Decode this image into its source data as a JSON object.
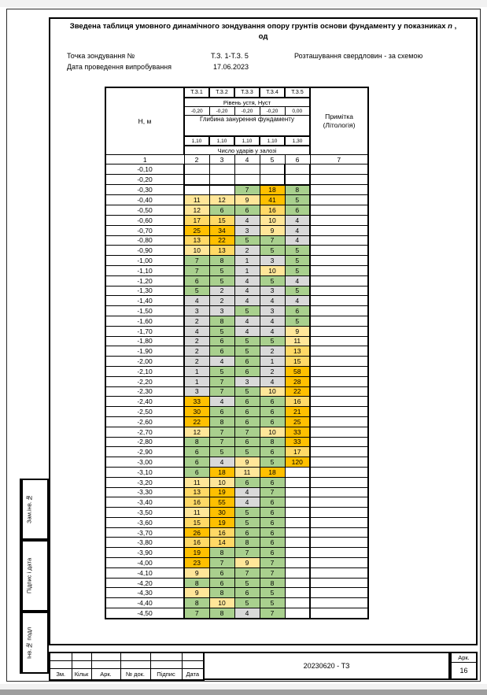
{
  "document": {
    "title": {
      "prefix": "Зведена таблиця умовного динамічного зондування опору грунтів основи фундаменту у показниках",
      "variable": "n",
      "suffix": ",",
      "line2": "од"
    },
    "meta": {
      "point_label": "Точка зондування №",
      "point_value": "Т.З. 1-Т.З. 5",
      "location_note": "Розташування свердловин - за схемою",
      "date_label": "Дата проведення випробування",
      "date_value": "17.06.2023"
    }
  },
  "sounding_table": {
    "depth_header": "Н, м",
    "points": [
      "Т.З.1",
      "Т.З.2",
      "Т.З.3",
      "Т.З.4",
      "Т.З.5"
    ],
    "level_label": "Рівень устя, Нуст",
    "levels": [
      "-0,20",
      "-0,20",
      "-0,20",
      "-0,20",
      "0,00"
    ],
    "foundation_label": "Глибина занурення фундаменту",
    "foundation_depths": [
      "1,10",
      "1,10",
      "1,10",
      "1,10",
      "1,30"
    ],
    "blows_label": "Число ударів у залозі",
    "note_line1": "Примітка",
    "note_line2": "(Літологія)",
    "column_numbers": [
      "1",
      "2",
      "3",
      "4",
      "5",
      "6",
      "7"
    ],
    "rows": [
      {
        "d": "-0,10",
        "v": [
          null,
          null,
          null,
          null,
          null
        ]
      },
      {
        "d": "-0,20",
        "v": [
          null,
          null,
          null,
          null,
          null
        ]
      },
      {
        "d": "-0,30",
        "v": [
          null,
          null,
          7,
          18,
          8
        ]
      },
      {
        "d": "-0,40",
        "v": [
          11,
          12,
          9,
          41,
          5
        ]
      },
      {
        "d": "-0,50",
        "v": [
          12,
          6,
          6,
          16,
          6
        ]
      },
      {
        "d": "-0,60",
        "v": [
          17,
          15,
          4,
          10,
          4
        ]
      },
      {
        "d": "-0,70",
        "v": [
          25,
          34,
          3,
          9,
          4
        ]
      },
      {
        "d": "-0,80",
        "v": [
          13,
          22,
          5,
          7,
          4
        ]
      },
      {
        "d": "-0,90",
        "v": [
          10,
          13,
          2,
          5,
          5
        ]
      },
      {
        "d": "-1,00",
        "v": [
          7,
          8,
          1,
          3,
          5
        ]
      },
      {
        "d": "-1,10",
        "v": [
          7,
          5,
          1,
          10,
          5
        ]
      },
      {
        "d": "-1,20",
        "v": [
          6,
          5,
          4,
          5,
          4
        ]
      },
      {
        "d": "-1,30",
        "v": [
          5,
          2,
          4,
          3,
          5
        ]
      },
      {
        "d": "-1,40",
        "v": [
          4,
          2,
          4,
          4,
          4
        ]
      },
      {
        "d": "-1,50",
        "v": [
          3,
          3,
          5,
          3,
          6
        ]
      },
      {
        "d": "-1,60",
        "v": [
          2,
          8,
          4,
          4,
          5
        ]
      },
      {
        "d": "-1,70",
        "v": [
          4,
          5,
          4,
          4,
          9
        ]
      },
      {
        "d": "-1,80",
        "v": [
          2,
          6,
          5,
          5,
          11
        ]
      },
      {
        "d": "-1,90",
        "v": [
          2,
          6,
          5,
          2,
          13
        ]
      },
      {
        "d": "-2,00",
        "v": [
          2,
          4,
          6,
          1,
          15
        ]
      },
      {
        "d": "-2,10",
        "v": [
          1,
          5,
          6,
          2,
          58
        ]
      },
      {
        "d": "-2,20",
        "v": [
          1,
          7,
          3,
          4,
          28
        ]
      },
      {
        "d": "-2,30",
        "v": [
          3,
          7,
          5,
          10,
          22
        ]
      },
      {
        "d": "-2,40",
        "v": [
          33,
          4,
          6,
          6,
          16
        ]
      },
      {
        "d": "-2,50",
        "v": [
          30,
          6,
          6,
          6,
          21
        ]
      },
      {
        "d": "-2,60",
        "v": [
          22,
          8,
          6,
          6,
          25
        ]
      },
      {
        "d": "-2,70",
        "v": [
          12,
          7,
          7,
          10,
          33
        ]
      },
      {
        "d": "-2,80",
        "v": [
          8,
          7,
          6,
          8,
          33
        ]
      },
      {
        "d": "-2,90",
        "v": [
          6,
          5,
          5,
          6,
          17
        ]
      },
      {
        "d": "-3,00",
        "v": [
          6,
          4,
          9,
          5,
          120
        ]
      },
      {
        "d": "-3,10",
        "v": [
          6,
          18,
          11,
          18,
          null
        ]
      },
      {
        "d": "-3,20",
        "v": [
          11,
          10,
          6,
          6,
          null
        ]
      },
      {
        "d": "-3,30",
        "v": [
          13,
          19,
          4,
          7,
          null
        ]
      },
      {
        "d": "-3,40",
        "v": [
          16,
          55,
          4,
          6,
          null
        ]
      },
      {
        "d": "-3,50",
        "v": [
          11,
          30,
          5,
          6,
          null
        ]
      },
      {
        "d": "-3,60",
        "v": [
          15,
          19,
          5,
          6,
          null
        ]
      },
      {
        "d": "-3,70",
        "v": [
          26,
          16,
          6,
          6,
          null
        ]
      },
      {
        "d": "-3,80",
        "v": [
          16,
          14,
          8,
          6,
          null
        ]
      },
      {
        "d": "-3,90",
        "v": [
          19,
          8,
          7,
          6,
          null
        ]
      },
      {
        "d": "-4,00",
        "v": [
          23,
          7,
          9,
          7,
          null
        ]
      },
      {
        "d": "-4,10",
        "v": [
          9,
          6,
          7,
          7,
          null
        ]
      },
      {
        "d": "-4,20",
        "v": [
          8,
          6,
          5,
          8,
          null
        ]
      },
      {
        "d": "-4,30",
        "v": [
          9,
          8,
          6,
          5,
          null
        ]
      },
      {
        "d": "-4,40",
        "v": [
          8,
          10,
          5,
          5,
          null
        ]
      },
      {
        "d": "-4,50",
        "v": [
          7,
          8,
          4,
          7,
          null
        ]
      }
    ]
  },
  "palette": {
    "gray": "#d9d9d9",
    "green": "#a9d08e",
    "yellow_light": "#ffe699",
    "yellow": "#ffd966",
    "gold": "#ffc000"
  },
  "color_rules": [
    {
      "max": 4,
      "color": "gray"
    },
    {
      "max": 8,
      "color": "green"
    },
    {
      "max": 12,
      "color": "yellow_light"
    },
    {
      "max": 17,
      "color": "yellow"
    },
    {
      "max": 100000,
      "color": "gold"
    }
  ],
  "sidebar": {
    "stamps": [
      "Зам.інв.№",
      "Підпис і дата",
      "Інв.№ подл"
    ]
  },
  "title_block": {
    "labels": [
      "Зм.",
      "Кільк",
      "Арк.",
      "№ док.",
      "Підпис",
      "Дата"
    ],
    "doc_number": "20230620 - ТЗ",
    "sheet_label": "Арк.",
    "sheet_number": "16"
  }
}
